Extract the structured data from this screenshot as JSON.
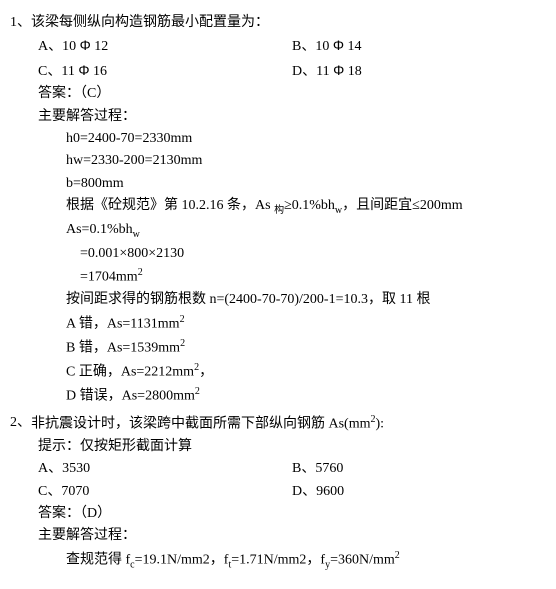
{
  "q1": {
    "num": "1、",
    "stem": "该梁每侧纵向构造钢筋最小配置量为：",
    "optA": "A、10 ",
    "optA_dia": "Φ",
    "optA_v": " 12",
    "optB": "B、10 ",
    "optB_dia": "Φ",
    "optB_v": " 14",
    "optC": "C、11 ",
    "optC_dia": "Φ",
    "optC_v": " 16",
    "optD": "D、11 ",
    "optD_dia": "Φ",
    "optD_v": " 18",
    "ans": "答案：（C）",
    "proc_title": "主要解答过程：",
    "l1": "h0=2400-70=2330mm",
    "l2": "hw=2330-200=2130mm",
    "l3": "b=800mm",
    "l4a": "根据《砼规范》第 10.2.16 条，As ",
    "l4b": "构",
    "l4c": "≥0.1%bh",
    "l4d": "w",
    "l4e": "，且间距宜≤200mm",
    "l5a": "As=0.1%bh",
    "l5b": "w",
    "l6": "=0.001×800×2130",
    "l7a": "=1704mm",
    "l7b": "2",
    "l8": "按间距求得的钢筋根数 n=(2400-70-70)/200-1=10.3，取 11 根",
    "l9a": "A 错，As=1131mm",
    "l9b": "2",
    "l10a": "B 错，As=1539mm",
    "l10b": "2",
    "l11a": "C 正确，As=2212mm",
    "l11b": "2",
    "l11c": "，",
    "l12a": "D 错误，As=2800mm",
    "l12b": "2"
  },
  "q2": {
    "num": "2、",
    "stem_a": "非抗震设计时，该梁跨中截面所需下部纵向钢筋 As(mm",
    "stem_b": "2",
    "stem_c": "):",
    "hint": "提示：仅按矩形截面计算",
    "optA": "A、3530",
    "optB": "B、5760",
    "optC": "C、7070",
    "optD": "D、9600",
    "ans": "答案：（D）",
    "proc_title": "主要解答过程：",
    "l1a": "查规范得 f",
    "l1b": "c",
    "l1c": "=19.1N/mm2，f",
    "l1d": "t",
    "l1e": "=1.71N/mm2，f",
    "l1f": "y",
    "l1g": "=360N/mm",
    "l1h": "2"
  }
}
